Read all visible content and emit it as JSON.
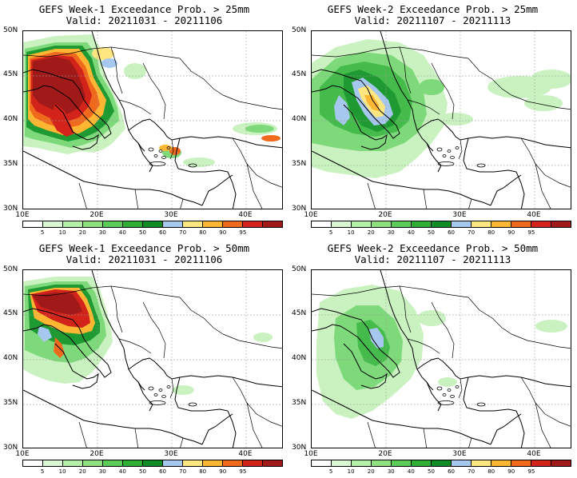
{
  "panels": [
    {
      "title": "GEFS Week-1 Exceedance Prob. > 25mm",
      "valid": "Valid: 20211031 - 20211106",
      "threshold": "25mm",
      "hotspots": "italy-balkans-high"
    },
    {
      "title": "GEFS Week-2 Exceedance Prob. > 25mm",
      "valid": "Valid: 20211107 - 20211113",
      "threshold": "25mm",
      "hotspots": "adriatic-wide"
    },
    {
      "title": "GEFS Week-1 Exceedance Prob. > 50mm",
      "valid": "Valid: 20211031 - 20211106",
      "threshold": "50mm",
      "hotspots": "italy-adriatic"
    },
    {
      "title": "GEFS Week-2 Exceedance Prob. > 50mm",
      "valid": "Valid: 20211107 - 20211113",
      "threshold": "50mm",
      "hotspots": "balkans-low"
    }
  ],
  "axes": {
    "lat_labels": [
      "50N",
      "45N",
      "40N",
      "35N",
      "30N"
    ],
    "lon_labels": [
      "10E",
      "20E",
      "30E",
      "40E"
    ]
  },
  "colorbar": {
    "labels": [
      "5",
      "10",
      "20",
      "30",
      "40",
      "50",
      "60",
      "70",
      "80",
      "90",
      "95"
    ],
    "colors": [
      "#ffffff",
      "#d9f7d3",
      "#b4f0a8",
      "#8ee07f",
      "#5ccc58",
      "#2fad35",
      "#0f8c23",
      "#a6c8ee",
      "#ffe680",
      "#ffb733",
      "#f06a1e",
      "#d2241a",
      "#a01a1a"
    ]
  },
  "map_colors": {
    "light_green": "#c9f2c0",
    "green": "#7ed97a",
    "mid_green": "#44bb4a",
    "dark_green": "#1f9a33",
    "blue": "#a6c8ee",
    "yellow": "#ffe680",
    "orange": "#ffb733",
    "red_orange": "#f06a1e",
    "red": "#d2241a",
    "dark_red": "#a01a1a"
  }
}
